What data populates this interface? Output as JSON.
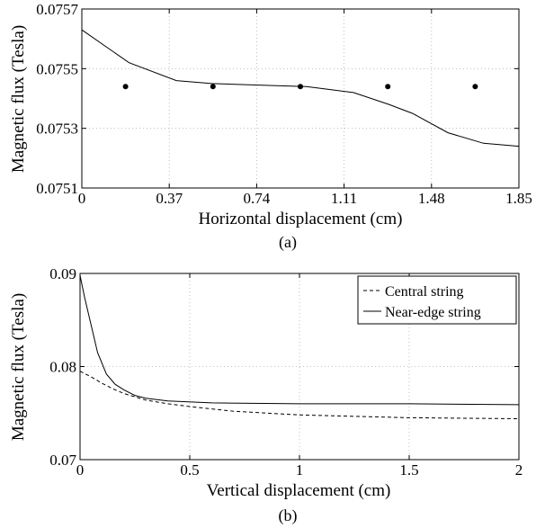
{
  "chart_data": [
    {
      "type": "line",
      "panel_label": "(a)",
      "xlabel": "Horizontal displacement (cm)",
      "ylabel": "Magnetic flux (Tesla)",
      "xlim": [
        0,
        1.85
      ],
      "ylim": [
        0.0751,
        0.0757
      ],
      "xticks": [
        "0",
        "0.37",
        "0.74",
        "1.11",
        "1.48",
        "1.85"
      ],
      "yticks": [
        "0.0751",
        "0.0753",
        "0.0755",
        "0.0757"
      ],
      "grid": true,
      "legend": null,
      "series": [
        {
          "style": "solid",
          "x": [
            0,
            0.2,
            0.4,
            0.55,
            0.75,
            0.95,
            1.0,
            1.15,
            1.3,
            1.4,
            1.55,
            1.7,
            1.85
          ],
          "y": [
            0.07563,
            0.07552,
            0.07546,
            0.07545,
            0.075445,
            0.07544,
            0.075435,
            0.07542,
            0.07538,
            0.07535,
            0.075285,
            0.07525,
            0.07524
          ]
        },
        {
          "style": "markers",
          "x": [
            0.185,
            0.555,
            0.925,
            1.295,
            1.665
          ],
          "y": [
            0.07544,
            0.07544,
            0.07544,
            0.07544,
            0.07544
          ]
        }
      ]
    },
    {
      "type": "line",
      "panel_label": "(b)",
      "xlabel": "Vertical displacement (cm)",
      "ylabel": "Magnetic flux (Tesla)",
      "xlim": [
        0,
        2
      ],
      "ylim": [
        0.07,
        0.09
      ],
      "xticks": [
        "0",
        "0.5",
        "1",
        "1.5",
        "2"
      ],
      "yticks": [
        "0.07",
        "0.08",
        "0.09"
      ],
      "grid": true,
      "legend": "top-right",
      "series": [
        {
          "name": "Central string",
          "style": "dashed",
          "x": [
            0,
            0.05,
            0.1,
            0.15,
            0.2,
            0.3,
            0.4,
            0.5,
            0.7,
            1.0,
            1.5,
            2.0
          ],
          "y": [
            0.0795,
            0.0789,
            0.0782,
            0.0776,
            0.0771,
            0.0764,
            0.076,
            0.0757,
            0.0752,
            0.0748,
            0.0745,
            0.0744
          ]
        },
        {
          "name": "Near-edge string",
          "style": "solid",
          "x": [
            0,
            0.02,
            0.05,
            0.08,
            0.12,
            0.16,
            0.2,
            0.25,
            0.3,
            0.4,
            0.6,
            1.0,
            1.5,
            2.0
          ],
          "y": [
            0.0898,
            0.0875,
            0.0845,
            0.0815,
            0.0792,
            0.0781,
            0.0775,
            0.0769,
            0.0766,
            0.0763,
            0.0761,
            0.076,
            0.076,
            0.0759
          ]
        }
      ]
    }
  ]
}
